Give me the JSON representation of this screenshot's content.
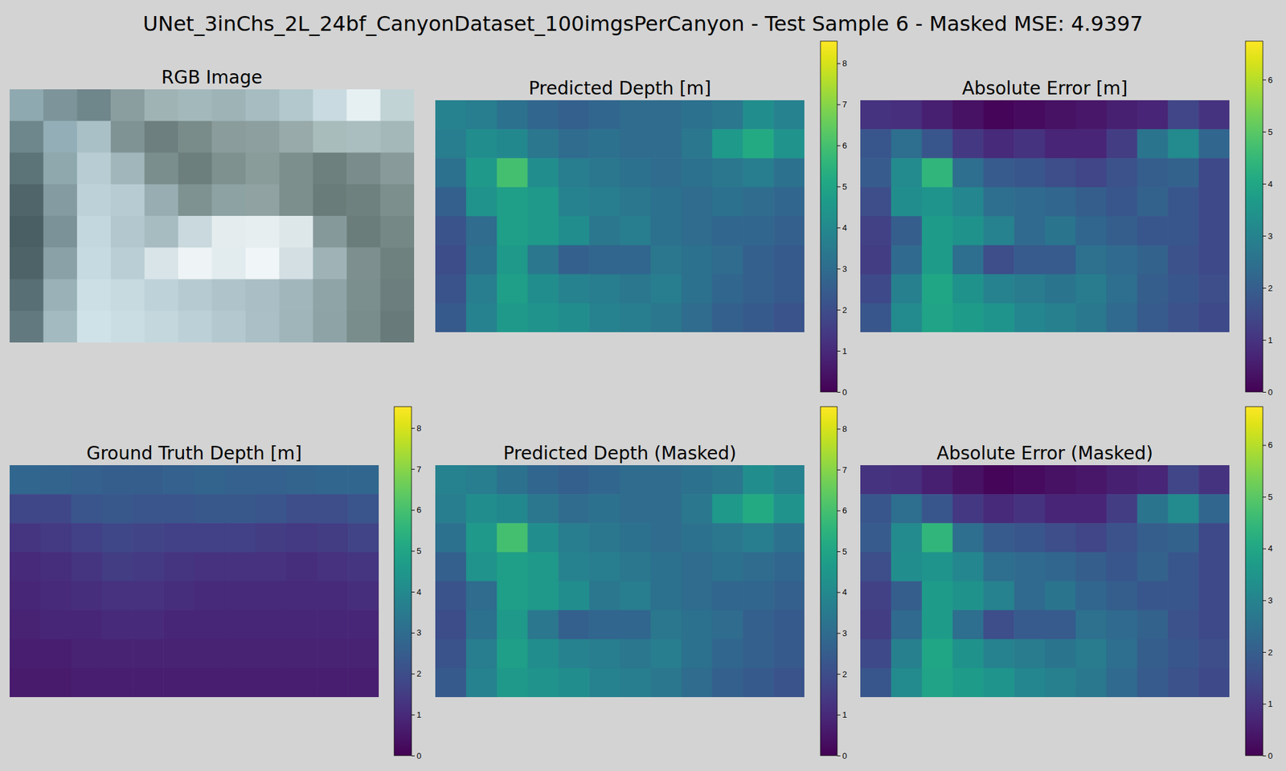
{
  "title": "UNet_3inChs_2L_24bf_CanyonDataset_100imgsPerCanyon - Test Sample 6 - Masked MSE: 4.9397",
  "chart_data": [
    {
      "type": "image",
      "title": "RGB Image",
      "tick_labels": false,
      "colors": [
        [
          "#8fa9b0",
          "#7d949a",
          "#6f868a",
          "#8a9d9f",
          "#9fb3b5",
          "#a3b8ba",
          "#9db3b6",
          "#a6bcc0",
          "#b2c8cc",
          "#c9dbe0",
          "#e6f0f3",
          "#c2d3d6"
        ],
        [
          "#6e878c",
          "#93aeb6",
          "#a9c0c6",
          "#7f9394",
          "#6d7f7e",
          "#7a8c8a",
          "#8a9c9b",
          "#8d9f9e",
          "#98aaa9",
          "#a9bcbc",
          "#aabec0",
          "#a4b8ba"
        ],
        [
          "#5c7378",
          "#8fa8ae",
          "#b7cdd3",
          "#a0b6ba",
          "#7b8e8e",
          "#6d7f7d",
          "#7f918f",
          "#8a9c9a",
          "#7d8f8c",
          "#6e807d",
          "#7a8c8b",
          "#889a99"
        ],
        [
          "#4f6569",
          "#849ca1",
          "#bcd2d8",
          "#b6ccd2",
          "#97adb1",
          "#7e9291",
          "#8da2a3",
          "#90a3a2",
          "#7c8f8c",
          "#6a7c79",
          "#6f817f",
          "#7d8f8d"
        ],
        [
          "#4a5f63",
          "#7b9398",
          "#c3d8de",
          "#b2c8ce",
          "#a7bcc1",
          "#c9d9de",
          "#e4ecee",
          "#e6eef0",
          "#dde7ea",
          "#86999a",
          "#6b7d7b",
          "#768886"
        ],
        [
          "#4d6367",
          "#8aa2a7",
          "#c6dbe1",
          "#b9cfd5",
          "#d8e4e8",
          "#eef4f6",
          "#e2ebee",
          "#f0f5f7",
          "#d3dfe2",
          "#9fb3b6",
          "#7d908f",
          "#6f817f"
        ],
        [
          "#587075",
          "#9ab2b7",
          "#cbdfe4",
          "#c6dae0",
          "#bed3d9",
          "#b6cbd1",
          "#aec4ca",
          "#a9bfc5",
          "#a0b6bb",
          "#8fa4a7",
          "#7c8f8f",
          "#6c7e7d"
        ],
        [
          "#627a7f",
          "#a3bbc0",
          "#cfe2e7",
          "#cadde3",
          "#c3d7dd",
          "#bcd1d7",
          "#b3c9cf",
          "#aac0c6",
          "#9fb5ba",
          "#8ea3a6",
          "#7a8d8d",
          "#687a79"
        ]
      ]
    },
    {
      "type": "heatmap",
      "title": "Predicted Depth [m]",
      "tick_labels": false,
      "cells": [
        [
          3.8,
          3.6,
          3.2,
          2.8,
          2.6,
          2.8,
          3.0,
          3.0,
          3.2,
          3.4,
          4.2,
          3.8
        ],
        [
          3.6,
          4.2,
          4.0,
          3.4,
          3.0,
          3.2,
          3.0,
          3.0,
          3.4,
          4.6,
          5.2,
          4.4
        ],
        [
          3.2,
          4.6,
          6.0,
          4.2,
          3.6,
          3.4,
          3.2,
          3.0,
          3.2,
          3.4,
          3.6,
          3.2
        ],
        [
          2.6,
          4.4,
          4.8,
          4.6,
          3.8,
          3.6,
          3.4,
          3.2,
          3.0,
          3.2,
          3.0,
          2.8
        ],
        [
          2.2,
          3.0,
          4.8,
          4.6,
          4.2,
          3.4,
          3.6,
          3.2,
          3.0,
          2.8,
          2.8,
          2.6
        ],
        [
          2.0,
          3.2,
          4.6,
          3.4,
          2.6,
          2.8,
          2.8,
          3.4,
          3.2,
          3.0,
          2.6,
          2.4
        ],
        [
          2.2,
          3.6,
          4.8,
          4.2,
          3.8,
          3.6,
          3.4,
          3.6,
          3.2,
          2.8,
          2.6,
          2.4
        ],
        [
          2.4,
          3.8,
          4.6,
          4.4,
          4.2,
          3.8,
          3.6,
          3.4,
          3.0,
          2.6,
          2.4,
          2.2
        ]
      ],
      "colorbar": {
        "range": [
          0,
          8.54
        ],
        "ticks": [
          0,
          1,
          2,
          3,
          4,
          5,
          6,
          7,
          8
        ]
      }
    },
    {
      "type": "heatmap",
      "title": "Absolute Error [m]",
      "tick_labels": false,
      "cells": [
        [
          1.0,
          0.9,
          0.6,
          0.3,
          0.1,
          0.2,
          0.3,
          0.4,
          0.6,
          0.7,
          1.4,
          1.0
        ],
        [
          1.8,
          2.4,
          1.8,
          1.1,
          0.8,
          1.0,
          0.7,
          0.7,
          1.2,
          2.6,
          3.2,
          2.2
        ],
        [
          1.9,
          3.2,
          4.4,
          2.4,
          1.9,
          1.8,
          1.6,
          1.4,
          1.7,
          2.0,
          2.1,
          1.5
        ],
        [
          1.6,
          3.3,
          3.5,
          3.1,
          2.4,
          2.3,
          2.2,
          2.0,
          1.8,
          2.1,
          1.8,
          1.5
        ],
        [
          1.3,
          2.0,
          3.7,
          3.4,
          3.0,
          2.3,
          2.6,
          2.2,
          2.0,
          1.8,
          1.8,
          1.5
        ],
        [
          1.2,
          2.3,
          3.7,
          2.4,
          1.6,
          1.9,
          1.9,
          2.5,
          2.3,
          2.1,
          1.7,
          1.5
        ],
        [
          1.5,
          2.9,
          4.0,
          3.4,
          3.0,
          2.8,
          2.6,
          2.8,
          2.4,
          2.0,
          1.8,
          1.6
        ],
        [
          1.8,
          3.2,
          3.9,
          3.7,
          3.5,
          3.1,
          2.9,
          2.7,
          2.3,
          1.9,
          1.7,
          1.5
        ]
      ],
      "colorbar": {
        "range": [
          0,
          6.74
        ],
        "ticks": [
          0,
          1,
          2,
          3,
          4,
          5,
          6
        ]
      }
    },
    {
      "type": "heatmap",
      "title": "Ground Truth Depth [m]",
      "tick_labels": false,
      "cells": [
        [
          2.8,
          2.7,
          2.6,
          2.5,
          2.5,
          2.6,
          2.7,
          2.6,
          2.6,
          2.7,
          2.8,
          2.8
        ],
        [
          1.8,
          1.8,
          2.2,
          2.3,
          2.2,
          2.2,
          2.3,
          2.3,
          2.2,
          2.0,
          2.0,
          2.2
        ],
        [
          1.3,
          1.4,
          1.6,
          1.8,
          1.7,
          1.6,
          1.6,
          1.6,
          1.5,
          1.4,
          1.5,
          1.7
        ],
        [
          1.0,
          1.1,
          1.3,
          1.5,
          1.4,
          1.3,
          1.2,
          1.2,
          1.2,
          1.1,
          1.2,
          1.3
        ],
        [
          0.9,
          1.0,
          1.1,
          1.2,
          1.2,
          1.1,
          1.0,
          1.0,
          1.0,
          1.0,
          1.0,
          1.1
        ],
        [
          0.8,
          0.9,
          0.9,
          1.0,
          1.0,
          0.9,
          0.9,
          0.9,
          0.9,
          0.9,
          0.9,
          0.9
        ],
        [
          0.7,
          0.7,
          0.8,
          0.8,
          0.8,
          0.8,
          0.8,
          0.8,
          0.8,
          0.8,
          0.8,
          0.8
        ],
        [
          0.6,
          0.6,
          0.7,
          0.7,
          0.7,
          0.7,
          0.7,
          0.7,
          0.7,
          0.7,
          0.7,
          0.7
        ]
      ],
      "colorbar": {
        "range": [
          0,
          8.52
        ],
        "ticks": [
          0,
          1,
          2,
          3,
          4,
          5,
          6,
          7,
          8
        ]
      }
    },
    {
      "type": "heatmap",
      "title": "Predicted Depth (Masked)",
      "tick_labels": false,
      "cells": [
        [
          3.8,
          3.6,
          3.2,
          2.8,
          2.6,
          2.8,
          3.0,
          3.0,
          3.2,
          3.4,
          4.2,
          3.8
        ],
        [
          3.6,
          4.2,
          4.0,
          3.4,
          3.0,
          3.2,
          3.0,
          3.0,
          3.4,
          4.6,
          5.2,
          4.4
        ],
        [
          3.2,
          4.6,
          6.0,
          4.2,
          3.6,
          3.4,
          3.2,
          3.0,
          3.2,
          3.4,
          3.6,
          3.2
        ],
        [
          2.6,
          4.4,
          4.8,
          4.6,
          3.8,
          3.6,
          3.4,
          3.2,
          3.0,
          3.2,
          3.0,
          2.8
        ],
        [
          2.2,
          3.0,
          4.8,
          4.6,
          4.2,
          3.4,
          3.6,
          3.2,
          3.0,
          2.8,
          2.8,
          2.6
        ],
        [
          2.0,
          3.2,
          4.6,
          3.4,
          2.6,
          2.8,
          2.8,
          3.4,
          3.2,
          3.0,
          2.6,
          2.4
        ],
        [
          2.2,
          3.6,
          4.8,
          4.2,
          3.8,
          3.6,
          3.4,
          3.6,
          3.2,
          2.8,
          2.6,
          2.4
        ],
        [
          2.4,
          3.8,
          4.6,
          4.4,
          4.2,
          3.8,
          3.6,
          3.4,
          3.0,
          2.6,
          2.4,
          2.2
        ]
      ],
      "colorbar": {
        "range": [
          0,
          8.54
        ],
        "ticks": [
          0,
          1,
          2,
          3,
          4,
          5,
          6,
          7,
          8
        ]
      }
    },
    {
      "type": "heatmap",
      "title": "Absolute Error (Masked)",
      "tick_labels": false,
      "cells": [
        [
          1.0,
          0.9,
          0.6,
          0.3,
          0.1,
          0.2,
          0.3,
          0.4,
          0.6,
          0.7,
          1.4,
          1.0
        ],
        [
          1.8,
          2.4,
          1.8,
          1.1,
          0.8,
          1.0,
          0.7,
          0.7,
          1.2,
          2.6,
          3.2,
          2.2
        ],
        [
          1.9,
          3.2,
          4.4,
          2.4,
          1.9,
          1.8,
          1.6,
          1.4,
          1.7,
          2.0,
          2.1,
          1.5
        ],
        [
          1.6,
          3.3,
          3.5,
          3.1,
          2.4,
          2.3,
          2.2,
          2.0,
          1.8,
          2.1,
          1.8,
          1.5
        ],
        [
          1.3,
          2.0,
          3.7,
          3.4,
          3.0,
          2.3,
          2.6,
          2.2,
          2.0,
          1.8,
          1.8,
          1.5
        ],
        [
          1.2,
          2.3,
          3.7,
          2.4,
          1.6,
          1.9,
          1.9,
          2.5,
          2.3,
          2.1,
          1.7,
          1.5
        ],
        [
          1.5,
          2.9,
          4.0,
          3.4,
          3.0,
          2.8,
          2.6,
          2.8,
          2.4,
          2.0,
          1.8,
          1.6
        ],
        [
          1.8,
          3.2,
          3.9,
          3.7,
          3.5,
          3.1,
          2.9,
          2.7,
          2.3,
          1.9,
          1.7,
          1.5
        ]
      ],
      "colorbar": {
        "range": [
          0,
          6.74
        ],
        "ticks": [
          0,
          1,
          2,
          3,
          4,
          5,
          6
        ]
      }
    }
  ]
}
